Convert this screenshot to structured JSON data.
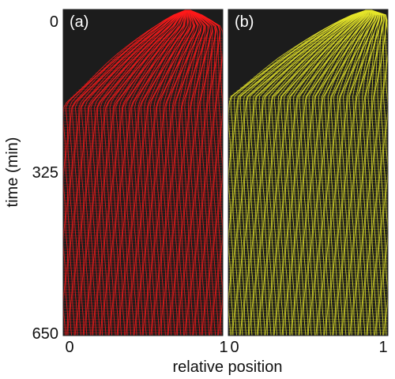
{
  "chart_data": {
    "type": "line",
    "ylabel": "time (min)",
    "xlabel": "relative position",
    "ylim": [
      0,
      650
    ],
    "xlim": [
      0,
      1
    ],
    "y_reversed": true,
    "y_ticks": [
      "0",
      "325",
      "650"
    ],
    "panels": [
      {
        "label": "(a)",
        "x_ticks": [
          "0",
          "1"
        ],
        "line_color": "#ff1a1a",
        "background_color": "#1c1c1c",
        "source_x": 0.78,
        "front_reach_left_time": 190
      },
      {
        "label": "(b)",
        "x_ticks": [
          "0",
          "1"
        ],
        "line_color": "#e6e62a",
        "background_color": "#1c1c1c",
        "source_x": 0.88,
        "front_reach_left_time": 175
      }
    ]
  }
}
